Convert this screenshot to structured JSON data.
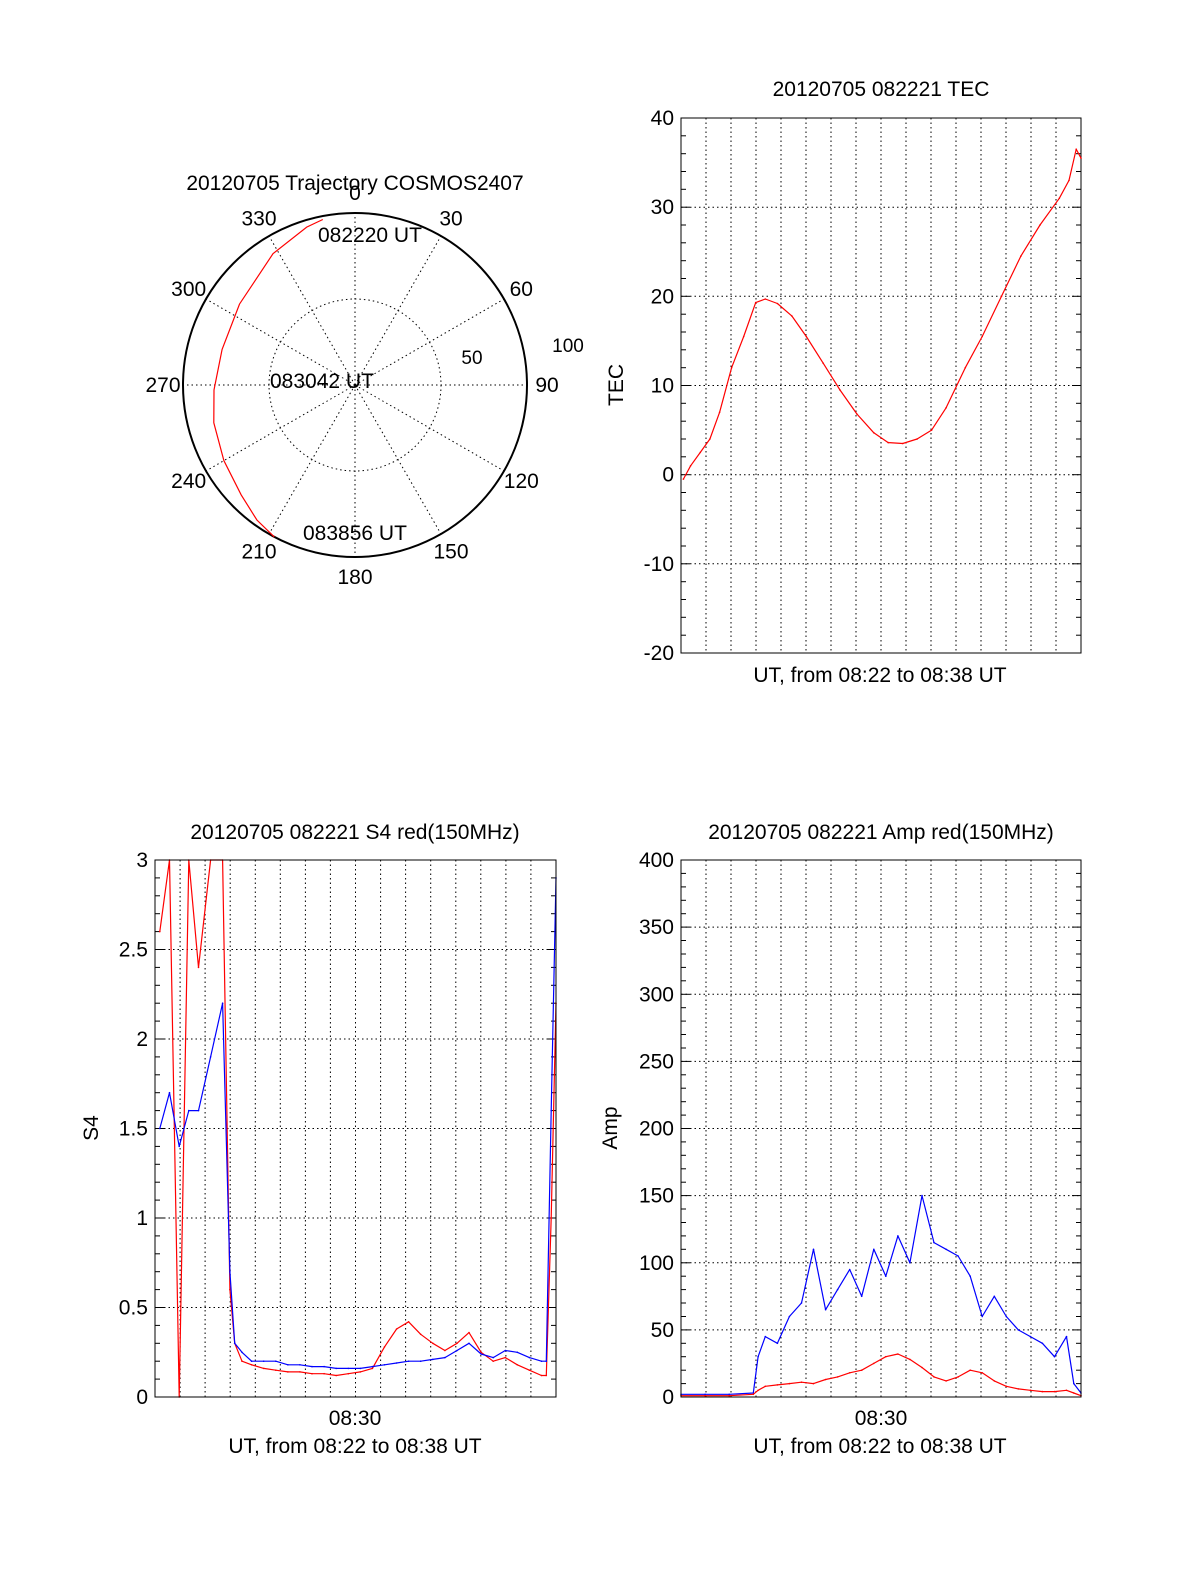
{
  "chart_data": [
    {
      "type": "scatter",
      "panel": "polar",
      "title": "20120705 Trajectory COSMOS2407",
      "azimuth_labels": [
        "0",
        "30",
        "60",
        "90",
        "120",
        "150",
        "180",
        "210",
        "240",
        "270",
        "300",
        "330"
      ],
      "elevation_ring_labels": [
        "50",
        "100"
      ],
      "point_labels": [
        "082220 UT",
        "083042 UT",
        "083856 UT"
      ],
      "trajectory": {
        "color": "#ff0000",
        "az_deg": [
          349,
          343,
          328,
          305,
          285,
          268,
          255,
          240,
          226,
          216,
          208
        ],
        "r": [
          98,
          96,
          90,
          82,
          80,
          82,
          85,
          88,
          92,
          97,
          100
        ]
      }
    },
    {
      "type": "line",
      "panel": "tec",
      "title": "20120705 082221 TEC",
      "xlabel": "UT, from 08:22 to 08:38 UT",
      "ylabel": "TEC",
      "xlim": [
        0,
        16.6
      ],
      "ylim": [
        -20,
        40
      ],
      "yticks": [
        "40",
        "30",
        "20",
        "10",
        "0",
        "-10",
        "-20"
      ],
      "series": [
        {
          "color": "#ff0000",
          "x": [
            0.1,
            0.4,
            0.8,
            1.2,
            1.6,
            2.1,
            2.6,
            3.1,
            3.5,
            4.0,
            4.6,
            5.2,
            5.9,
            6.6,
            7.3,
            8.0,
            8.6,
            9.2,
            9.8,
            10.4,
            11.0,
            11.8,
            12.5,
            13.3,
            14.1,
            14.9,
            15.7,
            16.1,
            16.4,
            16.6
          ],
          "y": [
            -0.5,
            1.0,
            2.5,
            4.0,
            7.0,
            12.0,
            15.5,
            19.3,
            19.7,
            19.2,
            17.8,
            15.5,
            12.5,
            9.5,
            6.8,
            4.7,
            3.6,
            3.5,
            4.0,
            5.0,
            7.5,
            12.0,
            15.5,
            20.0,
            24.5,
            28.0,
            31.0,
            33.0,
            36.5,
            35.5
          ]
        }
      ]
    },
    {
      "type": "line",
      "panel": "s4",
      "title": "20120705 082221 S4 red(150MHz)",
      "xlabel": "UT, from 08:22 to 08:38 UT",
      "ylabel": "S4",
      "xtick_labels": [
        "08:30"
      ],
      "xlim": [
        0,
        16.6
      ],
      "ylim": [
        0,
        3
      ],
      "yticks": [
        "3",
        "2.5",
        "2",
        "1.5",
        "1",
        "0.5",
        "0"
      ],
      "series": [
        {
          "color": "#ff0000",
          "x": [
            0.2,
            0.6,
            1.0,
            1.4,
            1.8,
            2.3,
            2.8,
            3.1,
            3.3,
            3.6,
            4.0,
            4.5,
            5.0,
            5.5,
            6.0,
            6.5,
            7.0,
            7.5,
            8.0,
            8.5,
            9.0,
            9.5,
            10.0,
            10.5,
            11.0,
            11.5,
            12.0,
            12.5,
            13.0,
            13.5,
            14.0,
            14.5,
            15.0,
            15.5,
            16.0,
            16.2,
            16.4,
            16.6
          ],
          "y": [
            2.6,
            3.0,
            0.0,
            3.0,
            2.4,
            3.0,
            3.0,
            0.6,
            0.3,
            0.2,
            0.18,
            0.16,
            0.15,
            0.14,
            0.14,
            0.13,
            0.13,
            0.12,
            0.13,
            0.14,
            0.16,
            0.28,
            0.38,
            0.42,
            0.35,
            0.3,
            0.26,
            0.3,
            0.36,
            0.25,
            0.2,
            0.22,
            0.18,
            0.15,
            0.12,
            0.12,
            1.0,
            2.2
          ]
        },
        {
          "color": "#0000ff",
          "x": [
            0.2,
            0.6,
            1.0,
            1.4,
            1.8,
            2.3,
            2.8,
            3.1,
            3.3,
            3.6,
            4.0,
            4.5,
            5.0,
            5.5,
            6.0,
            6.5,
            7.0,
            7.5,
            8.0,
            8.5,
            9.0,
            9.5,
            10.0,
            10.5,
            11.0,
            11.5,
            12.0,
            12.5,
            13.0,
            13.5,
            14.0,
            14.5,
            15.0,
            15.5,
            16.0,
            16.2,
            16.4,
            16.6
          ],
          "y": [
            1.5,
            1.7,
            1.4,
            1.6,
            1.6,
            1.9,
            2.2,
            0.7,
            0.3,
            0.25,
            0.2,
            0.2,
            0.2,
            0.18,
            0.18,
            0.17,
            0.17,
            0.16,
            0.16,
            0.16,
            0.17,
            0.18,
            0.19,
            0.2,
            0.2,
            0.21,
            0.22,
            0.26,
            0.3,
            0.24,
            0.22,
            0.26,
            0.25,
            0.22,
            0.2,
            0.2,
            1.6,
            2.9
          ]
        }
      ]
    },
    {
      "type": "line",
      "panel": "amp",
      "title": "20120705 082221 Amp red(150MHz)",
      "xlabel": "UT, from 08:22 to 08:38 UT",
      "ylabel": "Amp",
      "xtick_labels": [
        "08:30"
      ],
      "xlim": [
        0,
        16.6
      ],
      "ylim": [
        0,
        400
      ],
      "yticks": [
        "400",
        "350",
        "300",
        "250",
        "200",
        "150",
        "100",
        "50",
        "0"
      ],
      "series": [
        {
          "color": "#0000ff",
          "x": [
            0.0,
            1.0,
            2.0,
            3.0,
            3.2,
            3.5,
            4.0,
            4.5,
            5.0,
            5.5,
            6.0,
            6.5,
            7.0,
            7.5,
            8.0,
            8.5,
            9.0,
            9.5,
            10.0,
            10.5,
            11.0,
            11.5,
            12.0,
            12.5,
            13.0,
            13.5,
            14.0,
            14.5,
            15.0,
            15.5,
            16.0,
            16.3,
            16.6
          ],
          "y": [
            2,
            2,
            2,
            3,
            30,
            45,
            40,
            60,
            70,
            110,
            65,
            80,
            95,
            75,
            110,
            90,
            120,
            100,
            150,
            115,
            110,
            105,
            90,
            60,
            75,
            60,
            50,
            45,
            40,
            30,
            45,
            10,
            3
          ]
        },
        {
          "color": "#ff0000",
          "x": [
            0.0,
            1.0,
            2.0,
            3.0,
            3.2,
            3.5,
            4.0,
            4.5,
            5.0,
            5.5,
            6.0,
            6.5,
            7.0,
            7.5,
            8.0,
            8.5,
            9.0,
            9.5,
            10.0,
            10.5,
            11.0,
            11.5,
            12.0,
            12.5,
            13.0,
            13.5,
            14.0,
            14.5,
            15.0,
            15.5,
            16.0,
            16.3,
            16.6
          ],
          "y": [
            1,
            1,
            1,
            2,
            5,
            8,
            9,
            10,
            11,
            10,
            13,
            15,
            18,
            20,
            25,
            30,
            32,
            28,
            22,
            15,
            12,
            15,
            20,
            18,
            12,
            8,
            6,
            5,
            4,
            4,
            5,
            3,
            1
          ]
        }
      ]
    }
  ]
}
